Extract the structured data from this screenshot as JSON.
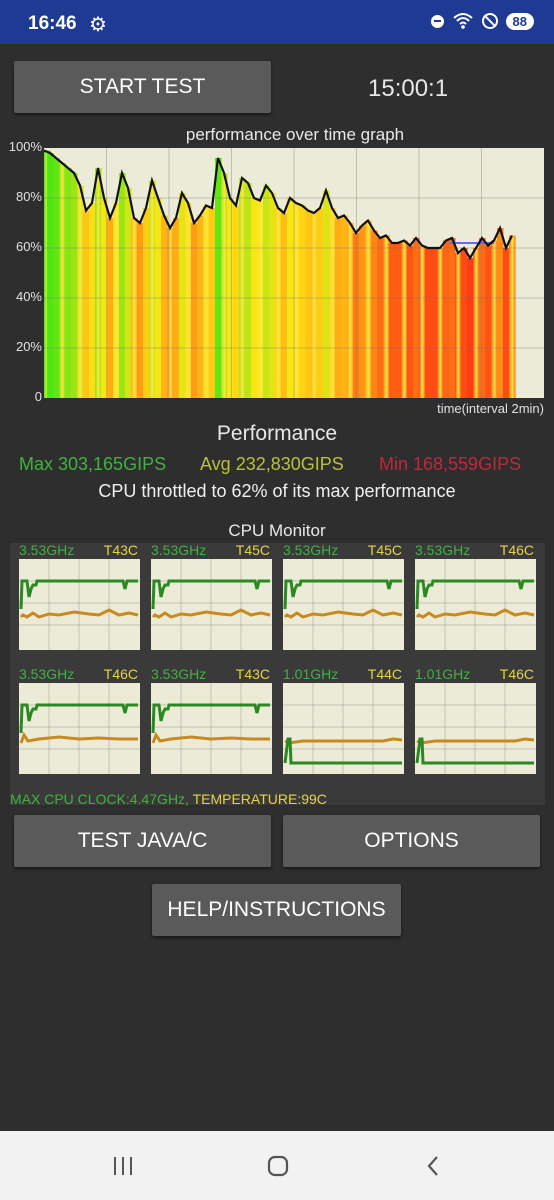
{
  "status_bar": {
    "time": "16:46",
    "battery": "88",
    "icons": [
      "gear-icon",
      "do-not-disturb-icon",
      "wifi-icon",
      "blocked-icon",
      "battery-icon"
    ]
  },
  "controls": {
    "start_test": "START TEST",
    "timer": "15:00:1",
    "test_java_c": "TEST JAVA/C",
    "options": "OPTIONS",
    "help": "HELP/INSTRUCTIONS"
  },
  "chart_data": {
    "type": "area",
    "title": "performance over time graph",
    "xlabel": "time(interval 2min)",
    "ylabel": "",
    "ylim": [
      0,
      100
    ],
    "yticks": [
      "100%",
      "80%",
      "60%",
      "40%",
      "20%",
      "0"
    ],
    "grid": true,
    "series": [
      {
        "values": [
          99,
          98,
          96,
          94,
          92,
          90,
          85,
          75,
          78,
          92,
          80,
          72,
          78,
          90,
          84,
          72,
          70,
          76,
          87,
          80,
          73,
          68,
          72,
          82,
          78,
          70,
          73,
          77,
          76,
          96,
          90,
          80,
          77,
          88,
          86,
          80,
          79,
          85,
          82,
          76,
          74,
          80,
          78,
          77,
          75,
          74,
          76,
          83,
          76,
          72,
          73,
          70,
          66,
          69,
          71,
          67,
          64,
          65,
          62,
          62,
          63,
          61,
          64,
          61,
          60,
          60,
          60,
          63,
          64,
          58,
          60,
          56,
          60,
          64,
          61,
          63,
          68,
          60,
          65
        ]
      }
    ],
    "throttle_line": 62
  },
  "performance": {
    "title": "Performance",
    "max": "Max 303,165GIPS",
    "avg": "Avg 232,830GIPS",
    "min": "Min 168,559GIPS",
    "throttle": "CPU throttled to 62% of its max performance",
    "colors": {
      "max": "#3fb23f",
      "avg": "#b5c23a",
      "min": "#c0283a"
    }
  },
  "cpu_monitor": {
    "title": "CPU Monitor",
    "cores": [
      {
        "freq": "3.53GHz",
        "temp": "T43C",
        "type": "high"
      },
      {
        "freq": "3.53GHz",
        "temp": "T45C",
        "type": "high"
      },
      {
        "freq": "3.53GHz",
        "temp": "T45C",
        "type": "high"
      },
      {
        "freq": "3.53GHz",
        "temp": "T46C",
        "type": "high"
      },
      {
        "freq": "3.53GHz",
        "temp": "T46C",
        "type": "high"
      },
      {
        "freq": "3.53GHz",
        "temp": "T43C",
        "type": "high"
      },
      {
        "freq": "1.01GHz",
        "temp": "T44C",
        "type": "low"
      },
      {
        "freq": "1.01GHz",
        "temp": "T46C",
        "type": "low"
      }
    ],
    "max_clock": "MAX CPU CLOCK:4.47GHz,",
    "temperature": "TEMPERATURE:99C"
  }
}
